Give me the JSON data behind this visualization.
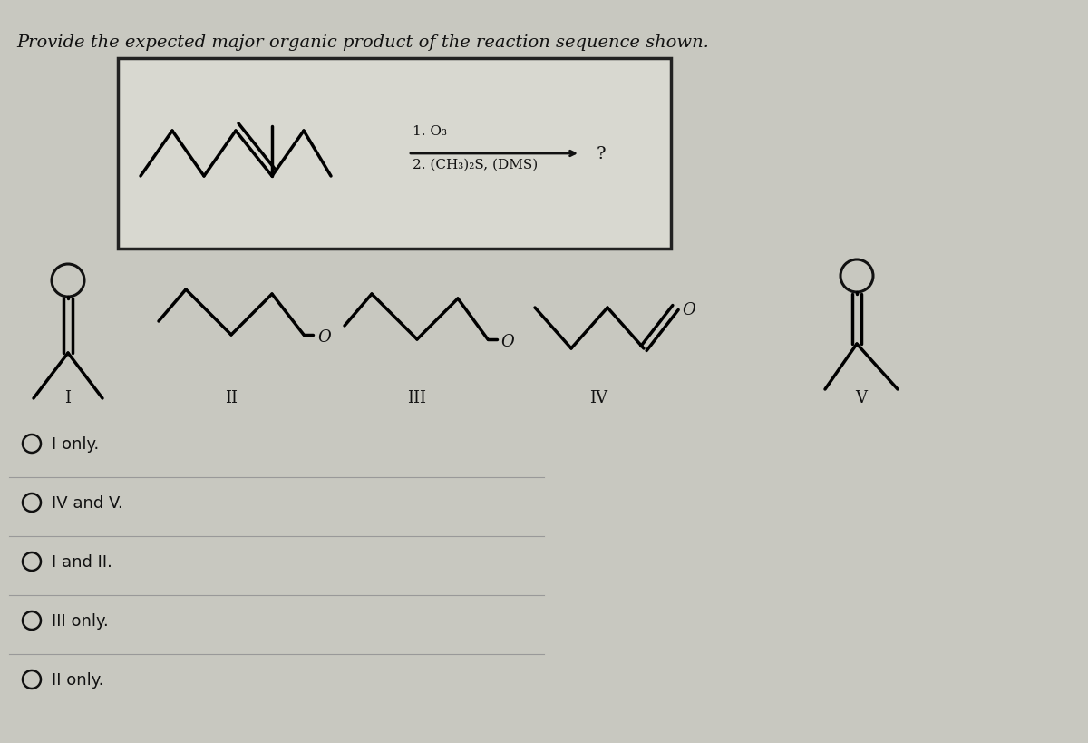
{
  "title": "Provide the expected major organic product of the reaction sequence shown.",
  "background_color": "#c8c8c0",
  "reaction_box_facecolor": "#e8e8e0",
  "reaction_step1": "1. O₃",
  "reaction_step2": "2. (CH₃)₂S, (DMS)",
  "question_mark": "?",
  "answer_choices": [
    "I only.",
    "IV and V.",
    "I and II.",
    "III only.",
    "II only."
  ],
  "structure_labels": [
    "I",
    "II",
    "III",
    "IV",
    "V"
  ],
  "text_color": "#111111",
  "box_line_color": "#222222",
  "arrow_color": "#111111",
  "grid_color": "#b8b8b0",
  "separator_color": "#999999"
}
